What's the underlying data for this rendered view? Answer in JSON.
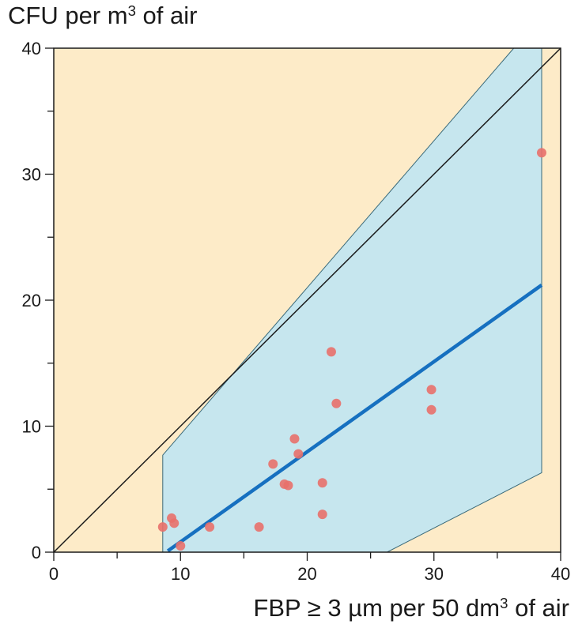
{
  "chart_data": {
    "type": "scatter",
    "ylabel": {
      "prefix": "CFU per m",
      "sup": "3",
      "suffix": " of air"
    },
    "xlabel": {
      "prefix": "FBP ≥ 3 µm per 50 dm",
      "sup": "3",
      "suffix": " of air"
    },
    "xlim": [
      0,
      40
    ],
    "ylim": [
      0,
      40
    ],
    "x_ticks_major": [
      0,
      10,
      20,
      30,
      40
    ],
    "y_ticks_major": [
      0,
      10,
      20,
      30,
      40
    ],
    "minor_tick_step": 5,
    "grid": false,
    "colors": {
      "plot_background": "#fdebc8",
      "band_fill": "#c6e6ee",
      "band_edge": "#3a6a7a",
      "regression_line": "#1670c0",
      "points": "#e8706a",
      "identity_line": "#1a1a1a",
      "axis": "#1a1a1a"
    },
    "points": [
      {
        "x": 8.6,
        "y": 2.0
      },
      {
        "x": 9.3,
        "y": 2.7
      },
      {
        "x": 9.5,
        "y": 2.3
      },
      {
        "x": 10.0,
        "y": 0.5
      },
      {
        "x": 12.3,
        "y": 2.0
      },
      {
        "x": 16.2,
        "y": 2.0
      },
      {
        "x": 17.3,
        "y": 7.0
      },
      {
        "x": 18.2,
        "y": 5.4
      },
      {
        "x": 18.5,
        "y": 5.3
      },
      {
        "x": 19.0,
        "y": 9.0
      },
      {
        "x": 19.3,
        "y": 7.8
      },
      {
        "x": 21.2,
        "y": 5.5
      },
      {
        "x": 21.2,
        "y": 3.0
      },
      {
        "x": 21.9,
        "y": 15.9
      },
      {
        "x": 22.3,
        "y": 11.8
      },
      {
        "x": 29.8,
        "y": 12.9
      },
      {
        "x": 29.8,
        "y": 11.3
      },
      {
        "x": 38.5,
        "y": 31.7
      }
    ],
    "regression_line": [
      {
        "x": 9.0,
        "y": 0.1
      },
      {
        "x": 38.5,
        "y": 21.2
      }
    ],
    "identity_line": [
      {
        "x": 0,
        "y": 0
      },
      {
        "x": 40,
        "y": 40
      }
    ],
    "confidence_band": [
      {
        "x": 8.6,
        "y": 0
      },
      {
        "x": 8.6,
        "y": 7.7
      },
      {
        "x": 36.3,
        "y": 40
      },
      {
        "x": 38.5,
        "y": 40
      },
      {
        "x": 38.5,
        "y": 6.3
      },
      {
        "x": 26.3,
        "y": 0
      }
    ]
  }
}
